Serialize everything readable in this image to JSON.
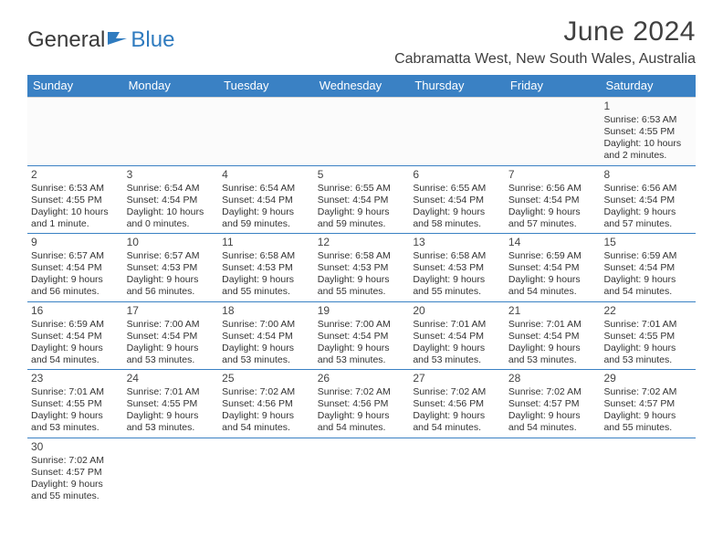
{
  "logo": {
    "text_dark": "General",
    "text_blue": "Blue"
  },
  "title": {
    "month": "June 2024",
    "location": "Cabramatta West, New South Wales, Australia"
  },
  "colors": {
    "header_bg": "#3a81c4",
    "header_text": "#ffffff",
    "body_text": "#333333",
    "divider": "#3a81c4",
    "logo_dark": "#3a3a3a",
    "logo_blue": "#2f7bbf"
  },
  "days_of_week": [
    "Sunday",
    "Monday",
    "Tuesday",
    "Wednesday",
    "Thursday",
    "Friday",
    "Saturday"
  ],
  "weeks": [
    [
      null,
      null,
      null,
      null,
      null,
      null,
      {
        "n": "1",
        "sr": "Sunrise: 6:53 AM",
        "ss": "Sunset: 4:55 PM",
        "d1": "Daylight: 10 hours",
        "d2": "and 2 minutes."
      }
    ],
    [
      {
        "n": "2",
        "sr": "Sunrise: 6:53 AM",
        "ss": "Sunset: 4:55 PM",
        "d1": "Daylight: 10 hours",
        "d2": "and 1 minute."
      },
      {
        "n": "3",
        "sr": "Sunrise: 6:54 AM",
        "ss": "Sunset: 4:54 PM",
        "d1": "Daylight: 10 hours",
        "d2": "and 0 minutes."
      },
      {
        "n": "4",
        "sr": "Sunrise: 6:54 AM",
        "ss": "Sunset: 4:54 PM",
        "d1": "Daylight: 9 hours",
        "d2": "and 59 minutes."
      },
      {
        "n": "5",
        "sr": "Sunrise: 6:55 AM",
        "ss": "Sunset: 4:54 PM",
        "d1": "Daylight: 9 hours",
        "d2": "and 59 minutes."
      },
      {
        "n": "6",
        "sr": "Sunrise: 6:55 AM",
        "ss": "Sunset: 4:54 PM",
        "d1": "Daylight: 9 hours",
        "d2": "and 58 minutes."
      },
      {
        "n": "7",
        "sr": "Sunrise: 6:56 AM",
        "ss": "Sunset: 4:54 PM",
        "d1": "Daylight: 9 hours",
        "d2": "and 57 minutes."
      },
      {
        "n": "8",
        "sr": "Sunrise: 6:56 AM",
        "ss": "Sunset: 4:54 PM",
        "d1": "Daylight: 9 hours",
        "d2": "and 57 minutes."
      }
    ],
    [
      {
        "n": "9",
        "sr": "Sunrise: 6:57 AM",
        "ss": "Sunset: 4:54 PM",
        "d1": "Daylight: 9 hours",
        "d2": "and 56 minutes."
      },
      {
        "n": "10",
        "sr": "Sunrise: 6:57 AM",
        "ss": "Sunset: 4:53 PM",
        "d1": "Daylight: 9 hours",
        "d2": "and 56 minutes."
      },
      {
        "n": "11",
        "sr": "Sunrise: 6:58 AM",
        "ss": "Sunset: 4:53 PM",
        "d1": "Daylight: 9 hours",
        "d2": "and 55 minutes."
      },
      {
        "n": "12",
        "sr": "Sunrise: 6:58 AM",
        "ss": "Sunset: 4:53 PM",
        "d1": "Daylight: 9 hours",
        "d2": "and 55 minutes."
      },
      {
        "n": "13",
        "sr": "Sunrise: 6:58 AM",
        "ss": "Sunset: 4:53 PM",
        "d1": "Daylight: 9 hours",
        "d2": "and 55 minutes."
      },
      {
        "n": "14",
        "sr": "Sunrise: 6:59 AM",
        "ss": "Sunset: 4:54 PM",
        "d1": "Daylight: 9 hours",
        "d2": "and 54 minutes."
      },
      {
        "n": "15",
        "sr": "Sunrise: 6:59 AM",
        "ss": "Sunset: 4:54 PM",
        "d1": "Daylight: 9 hours",
        "d2": "and 54 minutes."
      }
    ],
    [
      {
        "n": "16",
        "sr": "Sunrise: 6:59 AM",
        "ss": "Sunset: 4:54 PM",
        "d1": "Daylight: 9 hours",
        "d2": "and 54 minutes."
      },
      {
        "n": "17",
        "sr": "Sunrise: 7:00 AM",
        "ss": "Sunset: 4:54 PM",
        "d1": "Daylight: 9 hours",
        "d2": "and 53 minutes."
      },
      {
        "n": "18",
        "sr": "Sunrise: 7:00 AM",
        "ss": "Sunset: 4:54 PM",
        "d1": "Daylight: 9 hours",
        "d2": "and 53 minutes."
      },
      {
        "n": "19",
        "sr": "Sunrise: 7:00 AM",
        "ss": "Sunset: 4:54 PM",
        "d1": "Daylight: 9 hours",
        "d2": "and 53 minutes."
      },
      {
        "n": "20",
        "sr": "Sunrise: 7:01 AM",
        "ss": "Sunset: 4:54 PM",
        "d1": "Daylight: 9 hours",
        "d2": "and 53 minutes."
      },
      {
        "n": "21",
        "sr": "Sunrise: 7:01 AM",
        "ss": "Sunset: 4:54 PM",
        "d1": "Daylight: 9 hours",
        "d2": "and 53 minutes."
      },
      {
        "n": "22",
        "sr": "Sunrise: 7:01 AM",
        "ss": "Sunset: 4:55 PM",
        "d1": "Daylight: 9 hours",
        "d2": "and 53 minutes."
      }
    ],
    [
      {
        "n": "23",
        "sr": "Sunrise: 7:01 AM",
        "ss": "Sunset: 4:55 PM",
        "d1": "Daylight: 9 hours",
        "d2": "and 53 minutes."
      },
      {
        "n": "24",
        "sr": "Sunrise: 7:01 AM",
        "ss": "Sunset: 4:55 PM",
        "d1": "Daylight: 9 hours",
        "d2": "and 53 minutes."
      },
      {
        "n": "25",
        "sr": "Sunrise: 7:02 AM",
        "ss": "Sunset: 4:56 PM",
        "d1": "Daylight: 9 hours",
        "d2": "and 54 minutes."
      },
      {
        "n": "26",
        "sr": "Sunrise: 7:02 AM",
        "ss": "Sunset: 4:56 PM",
        "d1": "Daylight: 9 hours",
        "d2": "and 54 minutes."
      },
      {
        "n": "27",
        "sr": "Sunrise: 7:02 AM",
        "ss": "Sunset: 4:56 PM",
        "d1": "Daylight: 9 hours",
        "d2": "and 54 minutes."
      },
      {
        "n": "28",
        "sr": "Sunrise: 7:02 AM",
        "ss": "Sunset: 4:57 PM",
        "d1": "Daylight: 9 hours",
        "d2": "and 54 minutes."
      },
      {
        "n": "29",
        "sr": "Sunrise: 7:02 AM",
        "ss": "Sunset: 4:57 PM",
        "d1": "Daylight: 9 hours",
        "d2": "and 55 minutes."
      }
    ],
    [
      {
        "n": "30",
        "sr": "Sunrise: 7:02 AM",
        "ss": "Sunset: 4:57 PM",
        "d1": "Daylight: 9 hours",
        "d2": "and 55 minutes."
      },
      null,
      null,
      null,
      null,
      null,
      null
    ]
  ]
}
